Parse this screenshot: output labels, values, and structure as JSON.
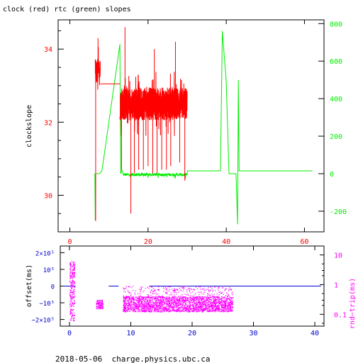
{
  "title": "clock (red) rtc (green) slopes",
  "footer": "2018-05-06  charge.physics.ubc.ca",
  "colors": {
    "clock": "#ff0000",
    "rtc": "#00ee00",
    "offset_axis": "#0000cc",
    "offset_line": "#0000cc",
    "rtt": "#ff00ff"
  },
  "chart_data": [
    {
      "type": "line",
      "title": "clock (red) rtc (green) slopes",
      "ylabel": "clockslope",
      "xlim": [
        -3,
        65
      ],
      "ylim": [
        29,
        34.8
      ],
      "y2lim": [
        -310,
        820
      ],
      "x_ticks": [
        "0",
        "20",
        "40",
        "60"
      ],
      "y_ticks": [
        "30",
        "32",
        "34"
      ],
      "y2_ticks": [
        "-200",
        "0",
        "200",
        "400",
        "600",
        "800"
      ],
      "series": [
        {
          "name": "clock",
          "axis": "left",
          "segments": [
            {
              "x_range": [
                6.5,
                7.8
              ],
              "center": 33.4,
              "amp": 0.35,
              "n": 60
            },
            {
              "x_range": [
                7.8,
                12.8
              ],
              "points": [
                [
                  7.8,
                  33.05
                ],
                [
                  12.8,
                  33.05
                ]
              ]
            },
            {
              "x_range": [
                12.8,
                30.0
              ],
              "center": 32.5,
              "amp": 0.45,
              "n": 900
            }
          ],
          "spikes": [
            [
              6.6,
              33.6,
              29.3
            ],
            [
              7.2,
              33.5,
              34.3
            ],
            [
              13.2,
              32.8,
              30.7
            ],
            [
              14.1,
              32.5,
              34.6
            ],
            [
              15.6,
              32.4,
              29.5
            ],
            [
              16.5,
              32.3,
              30.6
            ],
            [
              17.6,
              32.5,
              30.7
            ],
            [
              18.8,
              32.7,
              30.7
            ],
            [
              20.0,
              32.7,
              30.8
            ],
            [
              21.2,
              32.6,
              30.6
            ],
            [
              22.3,
              32.6,
              30.6
            ],
            [
              23.5,
              32.5,
              30.7
            ],
            [
              24.7,
              32.6,
              30.7
            ],
            [
              25.8,
              32.5,
              30.8
            ],
            [
              27.0,
              32.6,
              34.2
            ],
            [
              28.1,
              32.6,
              30.9
            ],
            [
              29.4,
              32.7,
              30.4
            ],
            [
              21.6,
              32.6,
              34.0
            ]
          ]
        },
        {
          "name": "rtc",
          "axis": "right",
          "points": [
            [
              6.4,
              0
            ],
            [
              6.5,
              -250
            ],
            [
              6.6,
              0
            ],
            [
              7.5,
              0
            ],
            [
              8.2,
              15
            ],
            [
              12.8,
              690
            ],
            [
              13.0,
              0
            ],
            [
              13.3,
              20
            ],
            [
              13.6,
              0
            ],
            [
              30.0,
              5
            ],
            [
              30.1,
              15
            ],
            [
              38.5,
              15
            ],
            [
              39.0,
              760
            ],
            [
              40.0,
              490
            ],
            [
              40.7,
              0
            ],
            [
              42.5,
              0
            ],
            [
              42.9,
              -270
            ],
            [
              43.1,
              500
            ],
            [
              43.3,
              15
            ],
            [
              62.0,
              15
            ]
          ],
          "noise": {
            "x_range": [
              13.6,
              30.0
            ],
            "center": -5,
            "amp": 8,
            "n": 300
          }
        }
      ]
    },
    {
      "type": "scatter",
      "ylabel": "offset(ms)",
      "y2label": "rnd−trip(ms)",
      "xlim": [
        -1.5,
        41.5
      ],
      "ylim": [
        -240000,
        240000
      ],
      "y2lim_log": [
        0.04,
        20
      ],
      "x_ticks": [
        "0",
        "10",
        "20",
        "30",
        "40"
      ],
      "y_ticks": [
        "2×10⁵",
        "10⁵",
        "0",
        "−10⁵",
        "−2×10⁵"
      ],
      "y2_ticks": [
        "10",
        "1",
        "0.1"
      ],
      "series": [
        {
          "name": "offset",
          "axis": "left",
          "segments": [
            {
              "x_range": [
                -1.0,
                1.0
              ],
              "y": 0
            },
            {
              "x_range": [
                6.4,
                8.0
              ],
              "y": 0
            },
            {
              "x_range": [
                13.0,
                41.0
              ],
              "y": 0
            }
          ]
        },
        {
          "name": "rnd-trip",
          "axis": "right",
          "clusters": [
            {
              "x_range": [
                0.0,
                0.8
              ],
              "y_range": [
                0.06,
                6.0
              ],
              "n": 260
            },
            {
              "x_range": [
                4.3,
                5.4
              ],
              "y_range": [
                0.15,
                0.3
              ],
              "n": 120
            },
            {
              "x_range": [
                8.7,
                26.6
              ],
              "y_range": [
                0.12,
                0.4
              ],
              "n": 2600
            }
          ]
        }
      ]
    }
  ]
}
